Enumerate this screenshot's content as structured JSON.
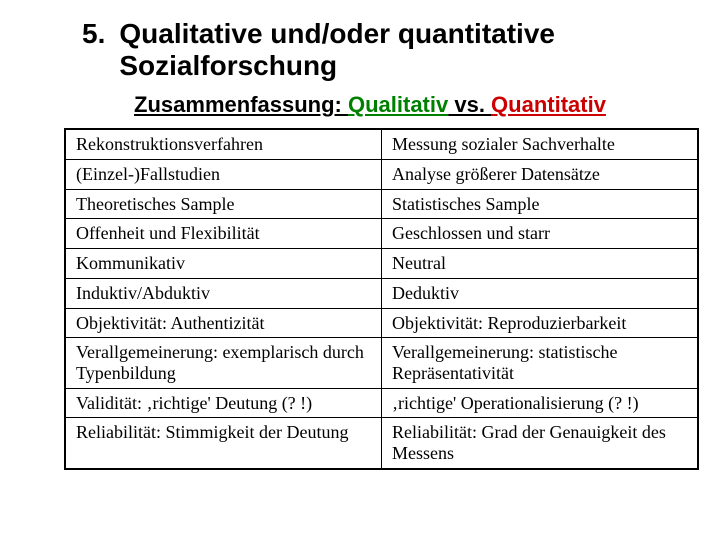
{
  "heading": {
    "number": "5.",
    "text": "Qualitative und/oder quantitative Sozialforschung"
  },
  "subtitle": {
    "prefix": "Zusammenfassung: ",
    "qualitative": "Qualitativ",
    "vs": " vs. ",
    "quantitative": "Quantitativ"
  },
  "table": {
    "rows": [
      [
        "Rekonstruktionsverfahren",
        "Messung sozialer Sachverhalte"
      ],
      [
        "(Einzel-)Fallstudien",
        "Analyse größerer Datensätze"
      ],
      [
        "Theoretisches Sample",
        "Statistisches Sample"
      ],
      [
        "Offenheit und Flexibilität",
        "Geschlossen und starr"
      ],
      [
        "Kommunikativ",
        "Neutral"
      ],
      [
        "Induktiv/Abduktiv",
        "Deduktiv"
      ],
      [
        "Objektivität: Authentizität",
        "Objektivität: Reproduzierbarkeit"
      ],
      [
        "Verallgemeinerung: exemplarisch durch Typenbildung",
        "Verallgemeinerung: statistische Repräsentativität"
      ],
      [
        "Validität: ‚richtige' Deutung (? !)",
        "‚richtige' Operationalisierung (? !)"
      ],
      [
        "Reliabilität: Stimmigkeit der Deutung",
        "Reliabilität: Grad der Genauigkeit des Messens"
      ]
    ]
  },
  "styling": {
    "background_color": "#ffffff",
    "heading_color": "#000000",
    "heading_fontsize": 28,
    "subtitle_fontsize": 22,
    "qualitative_color": "#008000",
    "quantitative_color": "#cc0000",
    "table_border_color": "#000000",
    "cell_font": "Times New Roman",
    "cell_fontsize": 18
  }
}
